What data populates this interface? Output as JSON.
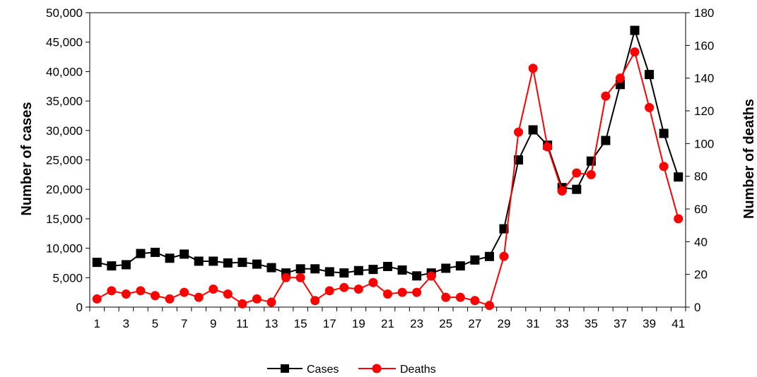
{
  "chart_data": {
    "type": "line",
    "x": [
      1,
      2,
      3,
      4,
      5,
      6,
      7,
      8,
      9,
      10,
      11,
      12,
      13,
      14,
      15,
      16,
      17,
      18,
      19,
      20,
      21,
      22,
      23,
      24,
      25,
      26,
      27,
      28,
      29,
      30,
      31,
      32,
      33,
      34,
      35,
      36,
      37,
      38,
      39,
      40,
      41
    ],
    "x_tick_labels": [
      "1",
      "3",
      "5",
      "7",
      "9",
      "11",
      "13",
      "15",
      "17",
      "19",
      "21",
      "23",
      "25",
      "27",
      "29",
      "31",
      "33",
      "35",
      "37",
      "39",
      "41"
    ],
    "ylabel": "Number of cases",
    "y2label": "Number of deaths",
    "ylim": [
      0,
      50000
    ],
    "y2lim": [
      0,
      180
    ],
    "y_tick_labels": [
      "0",
      "5,000",
      "10,000",
      "15,000",
      "20,000",
      "25,000",
      "30,000",
      "35,000",
      "40,000",
      "45,000",
      "50,000"
    ],
    "y2_tick_labels": [
      "0",
      "20",
      "40",
      "60",
      "80",
      "100",
      "120",
      "140",
      "160",
      "180"
    ],
    "grid": false,
    "legend_position": "bottom-center",
    "series": [
      {
        "name": "Cases",
        "axis": "left",
        "color": "#000000",
        "marker": "square",
        "values": [
          7600,
          7000,
          7200,
          9100,
          9300,
          8300,
          9000,
          7800,
          7800,
          7500,
          7600,
          7300,
          6700,
          5800,
          6500,
          6500,
          6000,
          5800,
          6200,
          6400,
          6900,
          6300,
          5300,
          5800,
          6600,
          7000,
          8000,
          8600,
          13300,
          25000,
          30100,
          27500,
          20300,
          20000,
          24800,
          28300,
          37800,
          47000,
          39500,
          29500,
          22100
        ]
      },
      {
        "name": "Deaths",
        "axis": "right",
        "color": "#ff0000",
        "marker": "circle",
        "values": [
          5,
          10,
          8,
          10,
          7,
          5,
          9,
          6,
          11,
          8,
          2,
          5,
          3,
          18,
          18,
          4,
          10,
          12,
          11,
          15,
          8,
          9,
          9,
          19,
          6,
          6,
          4,
          1,
          31,
          107,
          146,
          98,
          71,
          82,
          81,
          129,
          140,
          156,
          122,
          86,
          54
        ]
      }
    ]
  }
}
